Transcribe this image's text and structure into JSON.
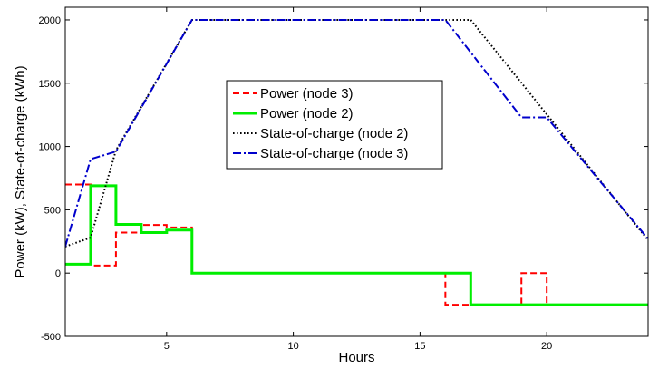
{
  "chart_data": {
    "type": "line",
    "title": "",
    "xlabel": "Hours",
    "ylabel": "Power (kW), State-of-charge (kWh)",
    "xlim": [
      1,
      24
    ],
    "ylim": [
      -500,
      2100
    ],
    "grid": false,
    "legend_position": "upper-center",
    "x_ticks": [
      5,
      10,
      15,
      20
    ],
    "x_tick_labels": [
      "5",
      "10",
      "15",
      "20"
    ],
    "y_ticks": [
      -500,
      0,
      500,
      1000,
      1500,
      2000
    ],
    "y_tick_labels": [
      "-500",
      "0",
      "500",
      "1000",
      "1500",
      "2000"
    ],
    "series": [
      {
        "name": "Power (node 3)",
        "color": "#ff0000",
        "style": "dashed",
        "stepped": true,
        "x": [
          1,
          2,
          3,
          4,
          5,
          6,
          16,
          17,
          19,
          20,
          24
        ],
        "y": [
          700,
          60,
          320,
          380,
          360,
          0,
          -250,
          -250,
          0,
          -250,
          -250
        ]
      },
      {
        "name": "Power (node 2)",
        "color": "#00ee00",
        "style": "solid",
        "stepped": true,
        "x": [
          1,
          2,
          3,
          4,
          5,
          6,
          17,
          24
        ],
        "y": [
          70,
          690,
          385,
          320,
          340,
          0,
          -250,
          -250
        ]
      },
      {
        "name": "State-of-charge (node 2)",
        "color": "#000000",
        "style": "dotted",
        "stepped": false,
        "x": [
          1,
          2,
          3,
          6,
          17,
          24
        ],
        "y": [
          210,
          280,
          970,
          2000,
          2000,
          260
        ]
      },
      {
        "name": "State-of-charge (node 3)",
        "color": "#0000cc",
        "style": "dashdot",
        "stepped": false,
        "x": [
          1,
          2,
          3,
          6,
          16,
          19,
          20,
          24
        ],
        "y": [
          210,
          900,
          960,
          2000,
          2000,
          1230,
          1230,
          270
        ]
      }
    ]
  }
}
